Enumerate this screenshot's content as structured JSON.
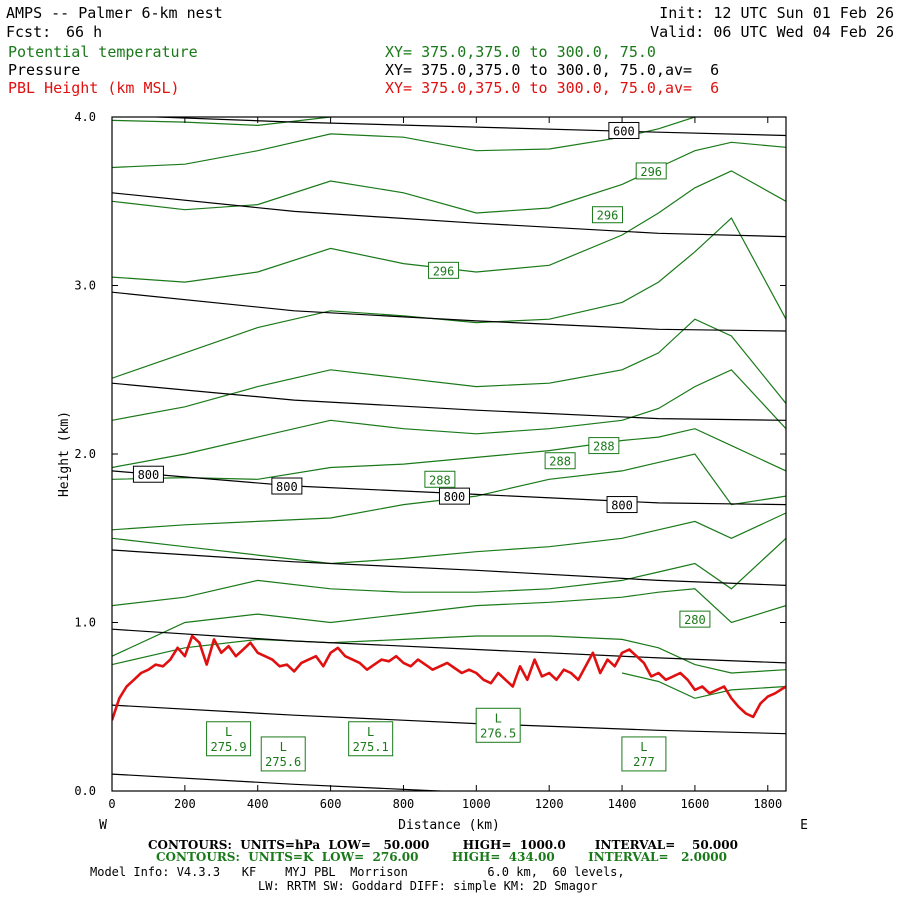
{
  "header": {
    "title": "AMPS -- Palmer 6-km nest",
    "fcst_label": "Fcst:",
    "fcst_value": "66 h",
    "init": "Init: 12 UTC Sun 01 Feb 26",
    "valid": "Valid: 06 UTC Wed 04 Feb 26"
  },
  "legend": [
    {
      "name": "Potential temperature",
      "xy": "XY= 375.0,375.0 to 300.0, 75.0",
      "color": "#1a7a1a"
    },
    {
      "name": "Pressure",
      "xy": "XY= 375.0,375.0 to 300.0, 75.0,av=  6",
      "color": "#000000"
    },
    {
      "name": "PBL Height (km MSL)",
      "xy": "XY= 375.0,375.0 to 300.0, 75.0,av=  6",
      "color": "#e01010"
    }
  ],
  "footer": {
    "line1": "CONTOURS:  UNITS=hPa  LOW=   50.000        HIGH=  1000.0       INTERVAL=    50.000",
    "line2": "CONTOURS:  UNITS=K  LOW=  276.00        HIGH=  434.00        INTERVAL=   2.0000",
    "line3": "Model Info: V4.3.3   KF    MYJ PBL  Morrison           6.0 km,  60 levels,",
    "line4": "LW: RRTM SW: Goddard DIFF: simple KM: 2D Smagor"
  },
  "chart_data": {
    "type": "line",
    "xlabel": "Distance (km)",
    "ylabel": "Height (km)",
    "xlim": [
      0,
      1850
    ],
    "ylim": [
      0,
      4.0
    ],
    "x_ticks": [
      0,
      200,
      400,
      600,
      800,
      1000,
      1200,
      1400,
      1600,
      1800
    ],
    "y_ticks": [
      "0.0",
      "1.0",
      "2.0",
      "3.0",
      "4.0"
    ],
    "x_end_labels": {
      "left": "W",
      "right": "E"
    },
    "pressure_isobars": [
      {
        "x": [
          0,
          500,
          1000,
          1500,
          1850
        ],
        "y": [
          3.55,
          3.44,
          3.37,
          3.31,
          3.29
        ]
      },
      {
        "x": [
          0,
          500,
          1000,
          1500,
          1850
        ],
        "y": [
          2.96,
          2.85,
          2.79,
          2.74,
          2.73
        ]
      },
      {
        "x": [
          0,
          500,
          1000,
          1500,
          1850
        ],
        "y": [
          2.42,
          2.32,
          2.26,
          2.21,
          2.2
        ]
      },
      {
        "x": [
          0,
          500,
          1000,
          1500,
          1850
        ],
        "y": [
          1.9,
          1.81,
          1.76,
          1.71,
          1.7
        ]
      },
      {
        "x": [
          0,
          500,
          1000,
          1500,
          1850
        ],
        "y": [
          1.43,
          1.36,
          1.31,
          1.25,
          1.22
        ]
      },
      {
        "x": [
          0,
          500,
          1000,
          1500,
          1850
        ],
        "y": [
          0.96,
          0.89,
          0.84,
          0.79,
          0.76
        ]
      },
      {
        "x": [
          0,
          500,
          1000,
          1500,
          1850
        ],
        "y": [
          0.51,
          0.45,
          0.4,
          0.36,
          0.34
        ]
      },
      {
        "x": [
          0,
          500,
          1000,
          1500,
          1850
        ],
        "y": [
          0.1,
          0.04,
          -0.01,
          -0.05,
          -0.07
        ]
      },
      {
        "x": [
          0,
          500,
          1000,
          1500,
          1850
        ],
        "y": [
          4.01,
          3.97,
          3.94,
          3.91,
          3.89
        ]
      }
    ],
    "pressure_labels": [
      {
        "text": "600",
        "x": 1405,
        "y": 3.92
      },
      {
        "text": "800",
        "x": 100,
        "y": 1.88
      },
      {
        "text": "800",
        "x": 480,
        "y": 1.81
      },
      {
        "text": "800",
        "x": 940,
        "y": 1.75
      },
      {
        "text": "800",
        "x": 1400,
        "y": 1.7
      }
    ],
    "theta_isentropes": [
      {
        "x": [
          0,
          200,
          400,
          600,
          800,
          1000,
          1200,
          1400,
          1500,
          1600,
          1700,
          1850
        ],
        "y": [
          3.98,
          3.97,
          3.95,
          4.0,
          4.02,
          4.02,
          4.03,
          4.05,
          4.06,
          4.08,
          4.1,
          4.1
        ]
      },
      {
        "x": [
          0,
          200,
          400,
          600,
          800,
          1000,
          1200,
          1400,
          1500,
          1600,
          1700,
          1850
        ],
        "y": [
          3.7,
          3.72,
          3.8,
          3.9,
          3.88,
          3.8,
          3.81,
          3.88,
          3.93,
          4.0,
          4.05,
          4.08
        ]
      },
      {
        "x": [
          0,
          200,
          400,
          600,
          800,
          1000,
          1200,
          1400,
          1500,
          1600,
          1700,
          1850
        ],
        "y": [
          3.5,
          3.45,
          3.48,
          3.62,
          3.55,
          3.43,
          3.46,
          3.6,
          3.7,
          3.8,
          3.85,
          3.82
        ]
      },
      {
        "x": [
          0,
          200,
          400,
          600,
          800,
          1000,
          1200,
          1400,
          1500,
          1600,
          1700,
          1850
        ],
        "y": [
          3.05,
          3.02,
          3.08,
          3.22,
          3.13,
          3.08,
          3.12,
          3.3,
          3.43,
          3.58,
          3.68,
          3.5
        ]
      },
      {
        "x": [
          0,
          200,
          400,
          600,
          800,
          1000,
          1200,
          1400,
          1500,
          1600,
          1700,
          1850
        ],
        "y": [
          2.45,
          2.6,
          2.75,
          2.85,
          2.82,
          2.78,
          2.8,
          2.9,
          3.02,
          3.2,
          3.4,
          2.8
        ]
      },
      {
        "x": [
          0,
          200,
          400,
          600,
          800,
          1000,
          1200,
          1400,
          1500,
          1600,
          1700,
          1850
        ],
        "y": [
          2.2,
          2.28,
          2.4,
          2.5,
          2.45,
          2.4,
          2.42,
          2.5,
          2.6,
          2.8,
          2.7,
          2.3
        ]
      },
      {
        "x": [
          0,
          200,
          400,
          600,
          800,
          1000,
          1200,
          1400,
          1500,
          1600,
          1700,
          1850
        ],
        "y": [
          1.92,
          2.0,
          2.1,
          2.2,
          2.15,
          2.12,
          2.15,
          2.2,
          2.27,
          2.4,
          2.5,
          2.15
        ]
      },
      {
        "x": [
          0,
          200,
          400,
          600,
          800,
          1000,
          1200,
          1400,
          1500,
          1600,
          1700,
          1850
        ],
        "y": [
          1.85,
          1.86,
          1.85,
          1.92,
          1.94,
          1.98,
          2.02,
          2.08,
          2.1,
          2.15,
          2.05,
          1.9
        ]
      },
      {
        "x": [
          0,
          200,
          400,
          600,
          800,
          1000,
          1200,
          1400,
          1500,
          1600,
          1700,
          1850
        ],
        "y": [
          1.55,
          1.58,
          1.6,
          1.62,
          1.7,
          1.75,
          1.85,
          1.9,
          1.95,
          2.0,
          1.7,
          1.75
        ]
      },
      {
        "x": [
          0,
          200,
          400,
          600,
          800,
          1000,
          1200,
          1400,
          1500,
          1600,
          1700,
          1850
        ],
        "y": [
          1.5,
          1.45,
          1.4,
          1.35,
          1.38,
          1.42,
          1.45,
          1.5,
          1.55,
          1.6,
          1.5,
          1.65
        ]
      },
      {
        "x": [
          0,
          200,
          400,
          600,
          800,
          1000,
          1200,
          1400,
          1500,
          1600,
          1700,
          1850
        ],
        "y": [
          1.1,
          1.15,
          1.25,
          1.2,
          1.18,
          1.18,
          1.2,
          1.25,
          1.3,
          1.35,
          1.2,
          1.5
        ]
      },
      {
        "x": [
          0,
          200,
          400,
          600,
          800,
          1000,
          1200,
          1400,
          1500,
          1600,
          1700,
          1850
        ],
        "y": [
          0.8,
          1.0,
          1.05,
          1.0,
          1.05,
          1.1,
          1.12,
          1.15,
          1.18,
          1.2,
          1.0,
          1.1
        ]
      },
      {
        "x": [
          0,
          200,
          400,
          600,
          800,
          1000,
          1200,
          1400,
          1500,
          1600,
          1700,
          1850
        ],
        "y": [
          0.75,
          0.85,
          0.9,
          0.88,
          0.9,
          0.92,
          0.92,
          0.9,
          0.85,
          0.75,
          0.7,
          0.72
        ]
      },
      {
        "x": [
          1400,
          1500,
          1600,
          1700,
          1850
        ],
        "y": [
          0.7,
          0.65,
          0.55,
          0.6,
          0.62
        ]
      }
    ],
    "theta_labels": [
      {
        "text": "296",
        "x": 1480,
        "y": 3.68
      },
      {
        "text": "296",
        "x": 1360,
        "y": 3.42
      },
      {
        "text": "296",
        "x": 910,
        "y": 3.09
      },
      {
        "text": "288",
        "x": 1350,
        "y": 2.05
      },
      {
        "text": "288",
        "x": 1230,
        "y": 1.96
      },
      {
        "text": "288",
        "x": 900,
        "y": 1.85
      },
      {
        "text": "280",
        "x": 1600,
        "y": 1.02
      }
    ],
    "low_centers": [
      {
        "letter": "L",
        "value": "275.9",
        "x": 320,
        "y": 0.31
      },
      {
        "letter": "L",
        "value": "275.6",
        "x": 470,
        "y": 0.22
      },
      {
        "letter": "L",
        "value": "275.1",
        "x": 710,
        "y": 0.31
      },
      {
        "letter": "L",
        "value": "276.5",
        "x": 1060,
        "y": 0.39
      },
      {
        "letter": "L",
        "value": "277",
        "x": 1460,
        "y": 0.22
      }
    ],
    "pbl_height": {
      "name": "PBL Height (km MSL)",
      "x": [
        0,
        20,
        40,
        60,
        80,
        100,
        120,
        140,
        160,
        180,
        200,
        220,
        240,
        260,
        280,
        300,
        320,
        340,
        360,
        380,
        400,
        420,
        440,
        460,
        480,
        500,
        520,
        540,
        560,
        580,
        600,
        620,
        640,
        660,
        680,
        700,
        720,
        740,
        760,
        780,
        800,
        820,
        840,
        860,
        880,
        900,
        920,
        940,
        960,
        980,
        1000,
        1020,
        1040,
        1060,
        1080,
        1100,
        1120,
        1140,
        1160,
        1180,
        1200,
        1220,
        1240,
        1260,
        1280,
        1300,
        1320,
        1340,
        1360,
        1380,
        1400,
        1420,
        1440,
        1460,
        1480,
        1500,
        1520,
        1540,
        1560,
        1580,
        1600,
        1620,
        1640,
        1660,
        1680,
        1700,
        1720,
        1740,
        1760,
        1780,
        1800,
        1820,
        1850
      ],
      "y": [
        0.42,
        0.55,
        0.62,
        0.66,
        0.7,
        0.72,
        0.75,
        0.74,
        0.78,
        0.85,
        0.8,
        0.92,
        0.88,
        0.75,
        0.9,
        0.82,
        0.86,
        0.8,
        0.84,
        0.88,
        0.82,
        0.8,
        0.78,
        0.74,
        0.75,
        0.71,
        0.76,
        0.78,
        0.8,
        0.74,
        0.82,
        0.85,
        0.8,
        0.78,
        0.76,
        0.72,
        0.75,
        0.78,
        0.77,
        0.8,
        0.76,
        0.74,
        0.78,
        0.75,
        0.72,
        0.74,
        0.76,
        0.73,
        0.7,
        0.72,
        0.7,
        0.66,
        0.64,
        0.7,
        0.66,
        0.62,
        0.74,
        0.66,
        0.78,
        0.68,
        0.7,
        0.66,
        0.72,
        0.7,
        0.66,
        0.74,
        0.82,
        0.7,
        0.78,
        0.74,
        0.82,
        0.84,
        0.8,
        0.76,
        0.68,
        0.7,
        0.66,
        0.68,
        0.7,
        0.66,
        0.6,
        0.62,
        0.58,
        0.6,
        0.62,
        0.55,
        0.5,
        0.46,
        0.44,
        0.52,
        0.56,
        0.58,
        0.62
      ]
    }
  }
}
